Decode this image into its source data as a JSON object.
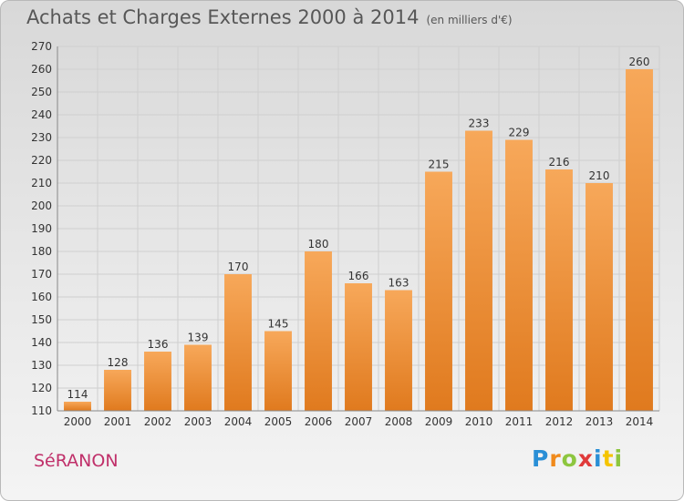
{
  "header": {
    "title": "Achats et Charges Externes 2000 à 2014",
    "subtitle": "(en milliers d'€)"
  },
  "footer": {
    "commune": "SéRANON",
    "logo_letters": [
      {
        "ch": "P",
        "color": "#2a8fd6"
      },
      {
        "ch": "r",
        "color": "#f08a1c"
      },
      {
        "ch": "o",
        "color": "#8dc63f"
      },
      {
        "ch": "x",
        "color": "#e03a3a"
      },
      {
        "ch": "i",
        "color": "#2a8fd6"
      },
      {
        "ch": "t",
        "color": "#f5c400"
      },
      {
        "ch": "i",
        "color": "#8dc63f"
      }
    ]
  },
  "colors": {
    "bar_light": "#f7a85a",
    "bar_dark": "#e07a1e",
    "grid": "#cfcfcf",
    "axis_text": "#333333"
  },
  "chart_data": {
    "type": "bar",
    "title": "Achats et Charges Externes 2000 à 2014",
    "subtitle": "(en milliers d'€)",
    "categories": [
      "2000",
      "2001",
      "2002",
      "2003",
      "2004",
      "2005",
      "2006",
      "2007",
      "2008",
      "2009",
      "2010",
      "2011",
      "2012",
      "2013",
      "2014"
    ],
    "values": [
      114,
      128,
      136,
      139,
      170,
      145,
      180,
      166,
      163,
      215,
      233,
      229,
      216,
      210,
      260
    ],
    "ylim": [
      110,
      270
    ],
    "yticks": [
      110,
      120,
      130,
      140,
      150,
      160,
      170,
      180,
      190,
      200,
      210,
      220,
      230,
      240,
      250,
      260,
      270
    ],
    "grid": true,
    "xlabel": "",
    "ylabel": ""
  }
}
